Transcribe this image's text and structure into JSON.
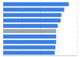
{
  "chart_data": {
    "type": "bar",
    "orientation": "horizontal",
    "categories": [
      null,
      null,
      null,
      null,
      null,
      null,
      null,
      null,
      null,
      null
    ],
    "values": [
      89,
      83,
      79,
      78,
      74,
      72,
      72,
      72,
      71,
      70
    ],
    "colors": [
      "#3b7fe0",
      "#3b7fe0",
      "#3b7fe0",
      "#3b7fe0",
      "#3b7fe0",
      "#9aa3b3",
      "#3b7fe0",
      "#3b7fe0",
      "#3b7fe0",
      "#3b7fe0"
    ],
    "xlim": [
      0,
      100
    ],
    "xticks": [
      0,
      25,
      50,
      75,
      100
    ],
    "grid": true,
    "tick_labels": false
  }
}
